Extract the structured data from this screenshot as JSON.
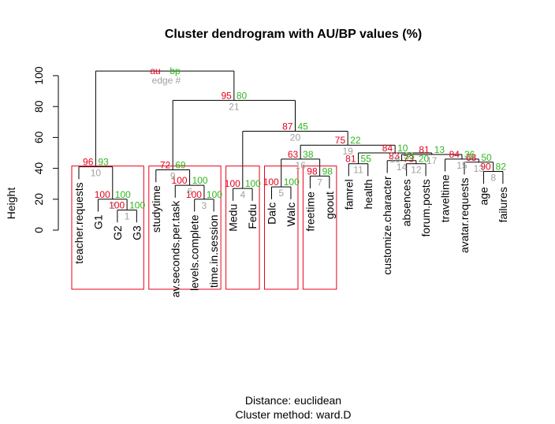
{
  "chart_data": {
    "type": "dendrogram",
    "title": "Cluster dendrogram with AU/BP values (%)",
    "ylabel": "Height",
    "ylim": [
      0,
      100
    ],
    "yticks": [
      0,
      20,
      40,
      60,
      80,
      100
    ],
    "sub_line1": "Distance:  euclidean",
    "sub_line2": "Cluster method: ward.D",
    "legend": {
      "au": "au",
      "bp": "bp",
      "edge": "edge #"
    },
    "colors": {
      "au": "#e8001c",
      "bp": "#2cb81c",
      "edge": "#a0a0a0",
      "rect": "#e8001c",
      "tree": "#000000"
    },
    "leaves": [
      "teacher.requests",
      "G1",
      "G2",
      "G3",
      "studytime",
      "av.seconds.per.task",
      "levels.complete",
      "time.in.session",
      "Medu",
      "Fedu",
      "Dalc",
      "Walc",
      "freetime",
      "goout",
      "famrel",
      "health",
      "customize.character",
      "absences",
      "forum.posts",
      "traveltime",
      "avatar.requests",
      "age",
      "failures"
    ],
    "merges": [
      {
        "a": "L2",
        "b": "L3",
        "height": 13,
        "au": "100",
        "bp": "100",
        "edge": "1"
      },
      {
        "a": "L1",
        "b": "M1",
        "height": 20,
        "au": "100",
        "bp": "100",
        "edge": "2"
      },
      {
        "a": "L6",
        "b": "L7",
        "height": 20,
        "au": "100",
        "bp": "100",
        "edge": "3"
      },
      {
        "a": "L8",
        "b": "L9",
        "height": 27,
        "au": "100",
        "bp": "100",
        "edge": "4"
      },
      {
        "a": "L10",
        "b": "L11",
        "height": 28,
        "au": "100",
        "bp": "100",
        "edge": "5"
      },
      {
        "a": "L12",
        "b": "L13",
        "height": 35,
        "au": "98",
        "bp": "98",
        "edge": "7"
      },
      {
        "a": "L21",
        "b": "L22",
        "height": 38,
        "au": "90",
        "bp": "82",
        "edge": "8"
      },
      {
        "a": "L5",
        "b": "M3",
        "height": 29,
        "au": "100",
        "bp": "100",
        "edge": "6"
      },
      {
        "a": "L4",
        "b": "M8",
        "height": 39,
        "au": "72",
        "bp": "69",
        "edge": "9"
      },
      {
        "a": "L0",
        "b": "M2",
        "height": 41,
        "au": "96",
        "bp": "93",
        "edge": "10"
      },
      {
        "a": "L14",
        "b": "L15",
        "height": 43,
        "au": "81",
        "bp": "55",
        "edge": "11"
      },
      {
        "a": "L17",
        "b": "L18",
        "height": 43,
        "au": "73",
        "bp": "20",
        "edge": "12"
      },
      {
        "a": "L20",
        "b": "M7",
        "height": 44,
        "au": "68",
        "bp": "50",
        "edge": "13"
      },
      {
        "a": "L16",
        "b": "M12",
        "height": 45,
        "au": "83",
        "bp": "33",
        "edge": "14"
      },
      {
        "a": "L19",
        "b": "M13",
        "height": 46,
        "au": "84",
        "bp": "36",
        "edge": "15"
      },
      {
        "a": "M5",
        "b": "M6",
        "height": 46,
        "au": "63",
        "bp": "38",
        "edge": "16"
      },
      {
        "a": "M14",
        "b": "M15",
        "height": 49,
        "au": "81",
        "bp": "13",
        "edge": "17"
      },
      {
        "a": "M11",
        "b": "M17",
        "height": 50,
        "au": "84",
        "bp": "10",
        "edge": "18"
      },
      {
        "a": "M16",
        "b": "M18",
        "height": 55,
        "au": "75",
        "bp": "22",
        "edge": "19"
      },
      {
        "a": "M4",
        "b": "M19",
        "height": 64,
        "au": "87",
        "bp": "45",
        "edge": "20"
      },
      {
        "a": "M9",
        "b": "M20",
        "height": 84,
        "au": "95",
        "bp": "80",
        "edge": "21"
      },
      {
        "a": "M10",
        "b": "M21",
        "height": 103,
        "au": "",
        "bp": "",
        "edge": ""
      }
    ],
    "highlight_clusters": [
      [
        0,
        3
      ],
      [
        4,
        7
      ],
      [
        8,
        9
      ],
      [
        10,
        11
      ],
      [
        12,
        13
      ]
    ]
  }
}
